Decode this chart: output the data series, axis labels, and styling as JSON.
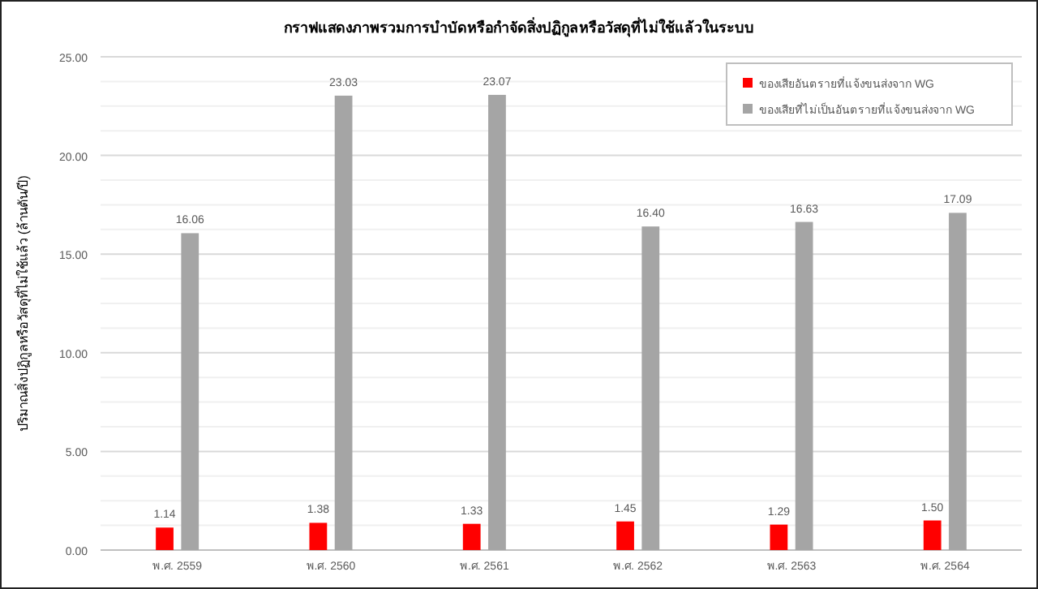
{
  "chart_data": {
    "type": "bar",
    "title": "กราฟแสดงภาพรวมการบำบัดหรือกำจัดสิ่งปฏิกูลหรือวัสดุที่ไม่ใช้แล้วในระบบ",
    "ylabel": "ปริมาณสิ่งปฏิกูลหรือวัสดุที่ไม่ใช้แล้ว (ล้านตัน/ปี)",
    "categories": [
      "พ.ศ. 2559",
      "พ.ศ. 2560",
      "พ.ศ. 2561",
      "พ.ศ. 2562",
      "พ.ศ. 2563",
      "พ.ศ. 2564"
    ],
    "series": [
      {
        "name": "ของเสียอันตรายที่แจ้งขนส่งจาก WG",
        "color": "#ff0000",
        "values": [
          1.14,
          1.38,
          1.33,
          1.45,
          1.29,
          1.5
        ],
        "value_labels": [
          "1.14",
          "1.38",
          "1.33",
          "1.45",
          "1.29",
          "1.50"
        ]
      },
      {
        "name": "ของเสียที่ไม่เป็นอันตรายที่แจ้งขนส่งจาก WG",
        "color": "#a5a5a5",
        "values": [
          16.06,
          23.03,
          23.07,
          16.4,
          16.63,
          17.09
        ],
        "value_labels": [
          "16.06",
          "23.03",
          "23.07",
          "16.40",
          "16.63",
          "17.09"
        ]
      }
    ],
    "ylim": [
      0,
      25
    ],
    "yticks": [
      {
        "value": 0,
        "label": "0.00"
      },
      {
        "value": 1.25,
        "label": null
      },
      {
        "value": 2.5,
        "label": null
      },
      {
        "value": 3.75,
        "label": null
      },
      {
        "value": 5,
        "label": "5.00"
      },
      {
        "value": 6.25,
        "label": null
      },
      {
        "value": 7.5,
        "label": null
      },
      {
        "value": 8.75,
        "label": null
      },
      {
        "value": 10,
        "label": "10.00"
      },
      {
        "value": 11.25,
        "label": null
      },
      {
        "value": 12.5,
        "label": null
      },
      {
        "value": 13.75,
        "label": null
      },
      {
        "value": 15,
        "label": "15.00"
      },
      {
        "value": 16.25,
        "label": null
      },
      {
        "value": 17.5,
        "label": null
      },
      {
        "value": 18.75,
        "label": null
      },
      {
        "value": 20,
        "label": "20.00"
      },
      {
        "value": 21.25,
        "label": null
      },
      {
        "value": 22.5,
        "label": null
      },
      {
        "value": 23.75,
        "label": null
      },
      {
        "value": 25,
        "label": "25.00"
      }
    ],
    "grid": "y",
    "legend": "top right"
  }
}
